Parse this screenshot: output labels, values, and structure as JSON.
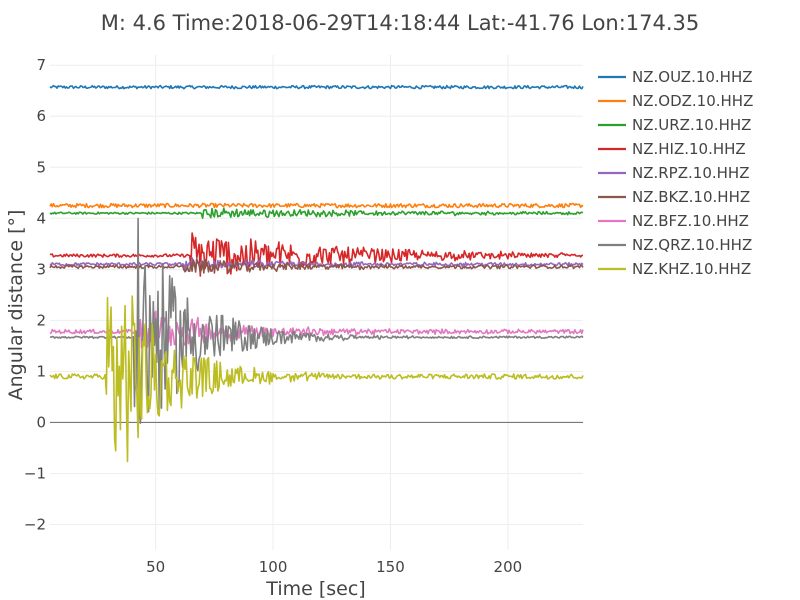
{
  "chart_data": {
    "type": "line",
    "title": "M: 4.6 Time:2018-06-29T14:18:44 Lat:-41.76 Lon:174.35",
    "xlabel": "Time [sec]",
    "ylabel": "Angular distance [°]",
    "xlim": [
      5,
      232
    ],
    "ylim": [
      -2.5,
      7.2
    ],
    "x_ticks": [
      50,
      100,
      150,
      200
    ],
    "y_ticks": [
      -2,
      -1,
      0,
      1,
      2,
      3,
      4,
      5,
      6,
      7
    ],
    "y_tick_labels": [
      "−2",
      "−1",
      "0",
      "1",
      "2",
      "3",
      "4",
      "5",
      "6",
      "7"
    ],
    "grid": true,
    "legend_position": "right",
    "zero_line": true,
    "series": [
      {
        "name": "NZ.OUZ.10.HHZ",
        "color": "#1f77b4",
        "baseline": 6.57,
        "onset": 999,
        "peak_amp": 0,
        "decay": 40,
        "start": 5,
        "noise": 0.03
      },
      {
        "name": "NZ.ODZ.10.HHZ",
        "color": "#ff7f0e",
        "baseline": 4.25,
        "onset": 999,
        "peak_amp": 0,
        "decay": 40,
        "start": 5,
        "noise": 0.04
      },
      {
        "name": "NZ.URZ.10.HHZ",
        "color": "#2ca02c",
        "baseline": 4.1,
        "onset": 70,
        "peak_amp": 0.1,
        "decay": 80,
        "start": 5,
        "noise": 0.02
      },
      {
        "name": "NZ.HIZ.10.HHZ",
        "color": "#d62728",
        "baseline": 3.27,
        "onset": 65,
        "peak_amp": 0.5,
        "decay": 60,
        "start": 5,
        "noise": 0.03
      },
      {
        "name": "NZ.RPZ.10.HHZ",
        "color": "#9467bd",
        "baseline": 3.1,
        "onset": 62,
        "peak_amp": 0.12,
        "decay": 50,
        "start": 5,
        "noise": 0.03
      },
      {
        "name": "NZ.BKZ.10.HHZ",
        "color": "#8c564b",
        "baseline": 3.05,
        "onset": 62,
        "peak_amp": 0.15,
        "decay": 50,
        "start": 5,
        "noise": 0.03
      },
      {
        "name": "NZ.BFZ.10.HHZ",
        "color": "#e377c2",
        "baseline": 1.78,
        "onset": 43,
        "peak_amp": 0.5,
        "decay": 35,
        "start": 5,
        "noise": 0.04
      },
      {
        "name": "NZ.QRZ.10.HHZ",
        "color": "#7f7f7f",
        "baseline": 1.67,
        "onset": 41,
        "peak_amp": 2.5,
        "decay": 22,
        "start": 5,
        "noise": 0.02
      },
      {
        "name": "NZ.KHZ.10.HHZ",
        "color": "#bcbd22",
        "baseline": 0.9,
        "onset": 29,
        "peak_amp": 2.6,
        "decay": 22,
        "start": 5,
        "noise": 0.05
      }
    ]
  }
}
